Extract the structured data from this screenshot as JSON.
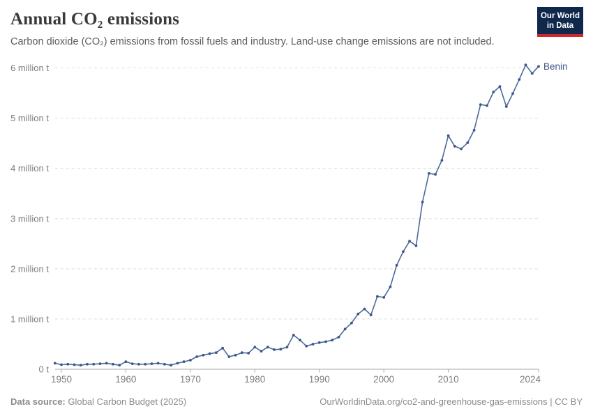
{
  "header": {
    "title": "Annual CO₂ emissions",
    "subtitle": "Carbon dioxide (CO₂) emissions from fossil fuels and industry. Land-use change emissions are not included.",
    "logo": {
      "line1": "Our World",
      "line2": "in Data",
      "bg_color": "#10284b",
      "stripe_color": "#cd2832"
    }
  },
  "footer": {
    "source_label": "Data source:",
    "source_value": " Global Carbon Budget (2025)",
    "rights": "OurWorldinData.org/co2-and-greenhouse-gas-emissions | CC BY"
  },
  "chart_data": {
    "type": "line",
    "title": "Annual CO₂ emissions",
    "entity_label": "Benin",
    "unit": "t",
    "line_color": "#4c6a9c",
    "marker_color": "#3d568b",
    "axis_color": "#a8a8a8",
    "grid_color": "#dcdcdc",
    "tick_label_color": "#7d7d7d",
    "grid": "horizontal-dashed",
    "legend_position": "end-of-line",
    "xlim": [
      1949,
      2024
    ],
    "ylim": [
      0,
      6.2
    ],
    "x_ticks": [
      1950,
      1960,
      1970,
      1980,
      1990,
      2000,
      2010,
      2024
    ],
    "y_ticks": [
      {
        "value": 0,
        "label": "0 t"
      },
      {
        "value": 1,
        "label": "1 million t"
      },
      {
        "value": 2,
        "label": "2 million t"
      },
      {
        "value": 3,
        "label": "3 million t"
      },
      {
        "value": 4,
        "label": "4 million t"
      },
      {
        "value": 5,
        "label": "5 million t"
      },
      {
        "value": 6,
        "label": "6 million t"
      }
    ],
    "ylabel": "",
    "xlabel": "",
    "series": [
      {
        "name": "Benin",
        "x": [
          1949,
          1950,
          1951,
          1952,
          1953,
          1954,
          1955,
          1956,
          1957,
          1958,
          1959,
          1960,
          1961,
          1962,
          1963,
          1964,
          1965,
          1966,
          1967,
          1968,
          1969,
          1970,
          1971,
          1972,
          1973,
          1974,
          1975,
          1976,
          1977,
          1978,
          1979,
          1980,
          1981,
          1982,
          1983,
          1984,
          1985,
          1986,
          1987,
          1988,
          1989,
          1990,
          1991,
          1992,
          1993,
          1994,
          1995,
          1996,
          1997,
          1998,
          1999,
          2000,
          2001,
          2002,
          2003,
          2004,
          2005,
          2006,
          2007,
          2008,
          2009,
          2010,
          2011,
          2012,
          2013,
          2014,
          2015,
          2016,
          2017,
          2018,
          2019,
          2020,
          2021,
          2022,
          2023,
          2024
        ],
        "values": [
          0.12,
          0.09,
          0.1,
          0.09,
          0.08,
          0.1,
          0.1,
          0.11,
          0.12,
          0.1,
          0.08,
          0.15,
          0.11,
          0.1,
          0.1,
          0.11,
          0.12,
          0.1,
          0.08,
          0.12,
          0.15,
          0.18,
          0.25,
          0.28,
          0.31,
          0.33,
          0.42,
          0.25,
          0.28,
          0.33,
          0.32,
          0.44,
          0.36,
          0.44,
          0.39,
          0.4,
          0.44,
          0.68,
          0.58,
          0.46,
          0.5,
          0.53,
          0.55,
          0.58,
          0.64,
          0.8,
          0.92,
          1.1,
          1.2,
          1.08,
          1.45,
          1.43,
          1.64,
          2.07,
          2.34,
          2.55,
          2.46,
          3.33,
          3.9,
          3.88,
          4.16,
          4.65,
          4.44,
          4.39,
          4.51,
          4.76,
          5.27,
          5.25,
          5.52,
          5.63,
          5.23,
          5.49,
          5.77,
          6.06,
          5.89,
          6.03
        ]
      }
    ]
  }
}
